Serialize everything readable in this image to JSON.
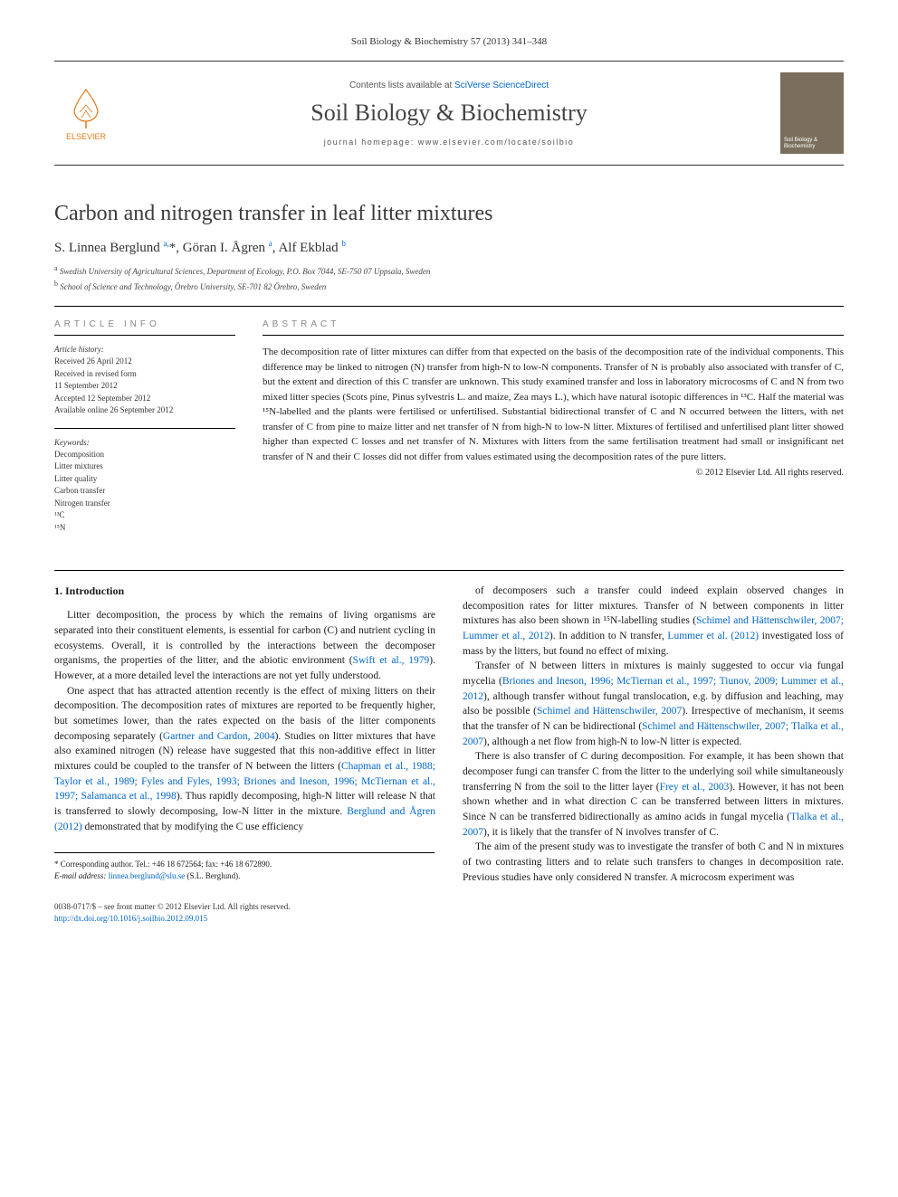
{
  "header": {
    "citation": "Soil Biology & Biochemistry 57 (2013) 341–348"
  },
  "masthead": {
    "publisher_label": "ELSEVIER",
    "contents_prefix": "Contents lists available at ",
    "contents_link": "SciVerse ScienceDirect",
    "journal_name": "Soil Biology & Biochemistry",
    "homepage_prefix": "journal homepage: ",
    "homepage_url": "www.elsevier.com/locate/soilbio",
    "cover_text": "Soil Biology & Biochemistry",
    "colors": {
      "publisher_orange": "#e67817",
      "link_blue": "#0066cc",
      "cover_bg": "#7a6f5c"
    }
  },
  "article": {
    "title": "Carbon and nitrogen transfer in leaf litter mixtures",
    "authors_html": "S. Linnea Berglund <sup>a,</sup>*, Göran I. Ågren <sup>a</sup>, Alf Ekblad <sup>b</sup>",
    "affiliations": [
      {
        "marker": "a",
        "text": "Swedish University of Agricultural Sciences, Department of Ecology, P.O. Box 7044, SE-750 07 Uppsala, Sweden"
      },
      {
        "marker": "b",
        "text": "School of Science and Technology, Örebro University, SE-701 82 Örebro, Sweden"
      }
    ]
  },
  "info": {
    "heading": "ARTICLE INFO",
    "history_label": "Article history:",
    "history": [
      "Received 26 April 2012",
      "Received in revised form",
      "11 September 2012",
      "Accepted 12 September 2012",
      "Available online 26 September 2012"
    ],
    "keywords_label": "Keywords:",
    "keywords": [
      "Decomposition",
      "Litter mixtures",
      "Litter quality",
      "Carbon transfer",
      "Nitrogen transfer",
      "¹³C",
      "¹⁵N"
    ]
  },
  "abstract": {
    "heading": "ABSTRACT",
    "text": "The decomposition rate of litter mixtures can differ from that expected on the basis of the decomposition rate of the individual components. This difference may be linked to nitrogen (N) transfer from high-N to low-N components. Transfer of N is probably also associated with transfer of C, but the extent and direction of this C transfer are unknown. This study examined transfer and loss in laboratory microcosms of C and N from two mixed litter species (Scots pine, Pinus sylvestris L. and maize, Zea mays L.), which have natural isotopic differences in ¹³C. Half the material was ¹⁵N-labelled and the plants were fertilised or unfertilised. Substantial bidirectional transfer of C and N occurred between the litters, with net transfer of C from pine to maize litter and net transfer of N from high-N to low-N litter. Mixtures of fertilised and unfertilised plant litter showed higher than expected C losses and net transfer of N. Mixtures with litters from the same fertilisation treatment had small or insignificant net transfer of N and their C losses did not differ from values estimated using the decomposition rates of the pure litters.",
    "copyright": "© 2012 Elsevier Ltd. All rights reserved."
  },
  "body": {
    "section_heading": "1. Introduction",
    "col1": [
      "Litter decomposition, the process by which the remains of living organisms are separated into their constituent elements, is essential for carbon (C) and nutrient cycling in ecosystems. Overall, it is controlled by the interactions between the decomposer organisms, the properties of the litter, and the abiotic environment (<span class='ref'>Swift et al., 1979</span>). However, at a more detailed level the interactions are not yet fully understood.",
      "One aspect that has attracted attention recently is the effect of mixing litters on their decomposition. The decomposition rates of mixtures are reported to be frequently higher, but sometimes lower, than the rates expected on the basis of the litter components decomposing separately (<span class='ref'>Gartner and Cardon, 2004</span>). Studies on litter mixtures that have also examined nitrogen (N) release have suggested that this non-additive effect in litter mixtures could be coupled to the transfer of N between the litters (<span class='ref'>Chapman et al., 1988; Taylor et al., 1989; Fyles and Fyles, 1993; Briones and Ineson, 1996; McTiernan et al., 1997; Salamanca et al., 1998</span>). Thus rapidly decomposing, high-N litter will release N that is transferred to slowly decomposing, low-N litter in the mixture. <span class='ref'>Berglund and Ågren (2012)</span> demonstrated that by modifying the C use efficiency"
    ],
    "col2": [
      "of decomposers such a transfer could indeed explain observed changes in decomposition rates for litter mixtures. Transfer of N between components in litter mixtures has also been shown in ¹⁵N-labelling studies (<span class='ref'>Schimel and Hättenschwiler, 2007; Lummer et al., 2012</span>). In addition to N transfer, <span class='ref'>Lummer et al. (2012)</span> investigated loss of mass by the litters, but found no effect of mixing.",
      "Transfer of N between litters in mixtures is mainly suggested to occur via fungal mycelia (<span class='ref'>Briones and Ineson, 1996; McTiernan et al., 1997; Tiunov, 2009; Lummer et al., 2012</span>), although transfer without fungal translocation, e.g. by diffusion and leaching, may also be possible (<span class='ref'>Schimel and Hättenschwiler, 2007</span>). Irrespective of mechanism, it seems that the transfer of N can be bidirectional (<span class='ref'>Schimel and Hättenschwiler, 2007; Tlalka et al., 2007</span>), although a net flow from high-N to low-N litter is expected.",
      "There is also transfer of C during decomposition. For example, it has been shown that decomposer fungi can transfer C from the litter to the underlying soil while simultaneously transferring N from the soil to the litter layer (<span class='ref'>Frey et al., 2003</span>). However, it has not been shown whether and in what direction C can be transferred between litters in mixtures. Since N can be transferred bidirectionally as amino acids in fungal mycelia (<span class='ref'>Tlalka et al., 2007</span>), it is likely that the transfer of N involves transfer of C.",
      "The aim of the present study was to investigate the transfer of both C and N in mixtures of two contrasting litters and to relate such transfers to changes in decomposition rate. Previous studies have only considered N transfer. A microcosm experiment was"
    ]
  },
  "corr": {
    "line1": "* Corresponding author. Tel.: +46 18 672564; fax: +46 18 672890.",
    "line2_label": "E-mail address: ",
    "line2_email": "linnea.berglund@slu.se",
    "line2_suffix": " (S.L. Berglund)."
  },
  "footer": {
    "issn_line": "0038-0717/$ – see front matter © 2012 Elsevier Ltd. All rights reserved.",
    "doi_label": "http://dx.doi.org/",
    "doi": "10.1016/j.soilbio.2012.09.015"
  }
}
